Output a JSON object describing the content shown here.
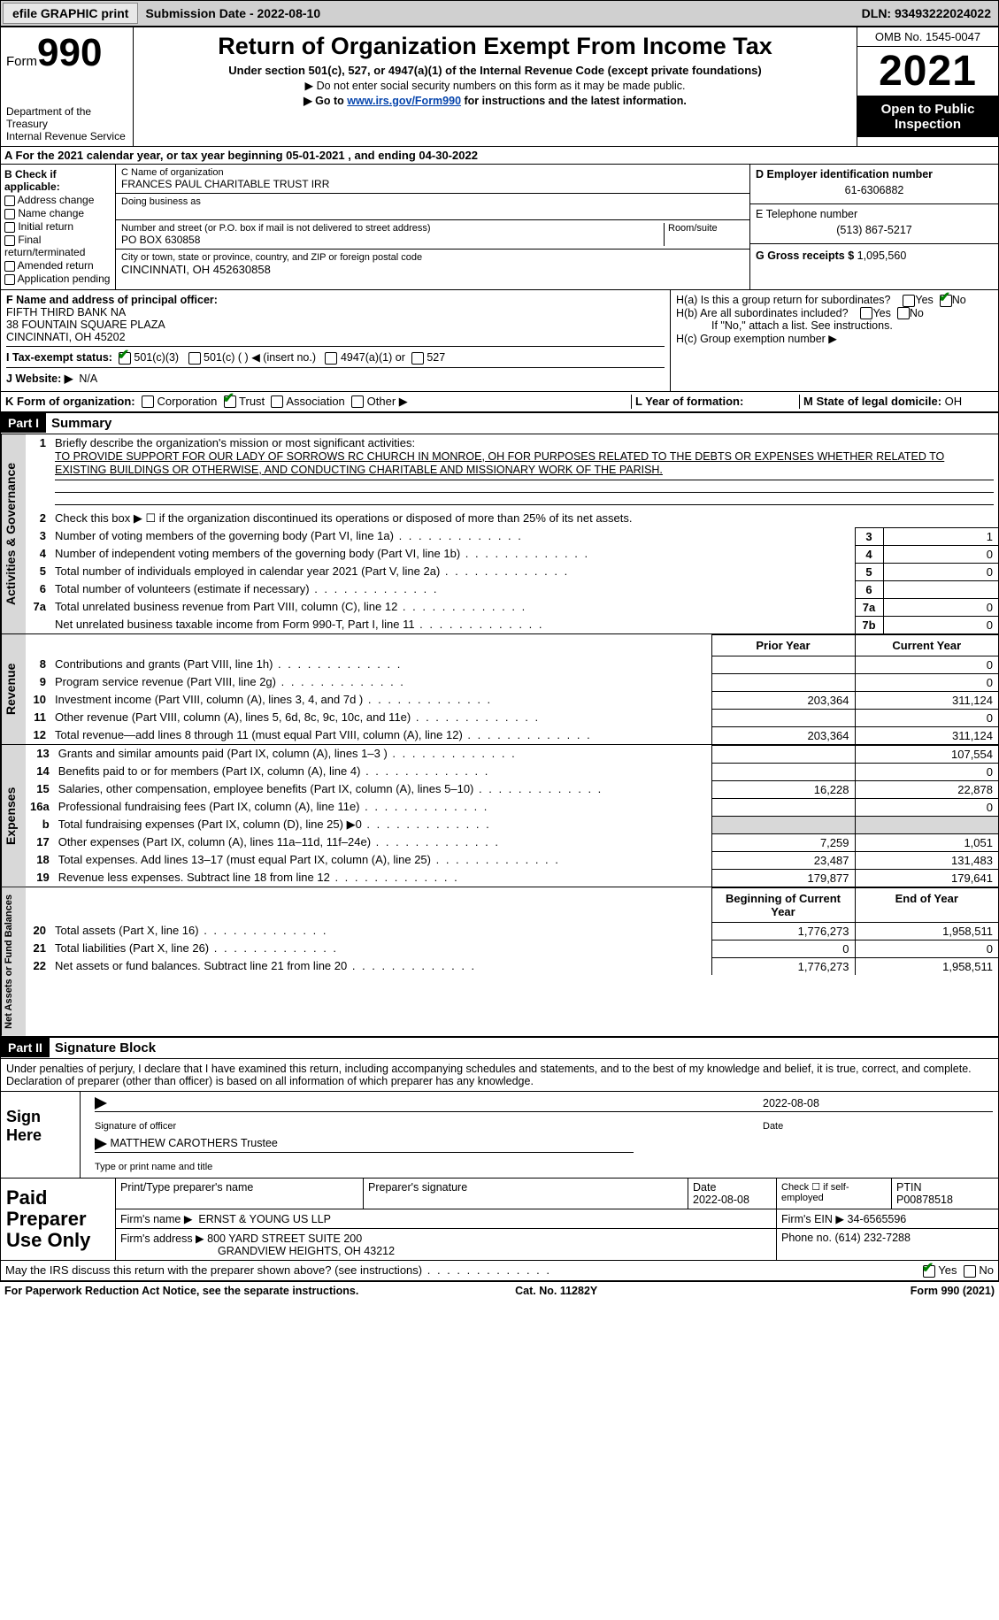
{
  "topbar": {
    "efile": "efile GRAPHIC print",
    "submission_label": "Submission Date - ",
    "submission_date": "2022-08-10",
    "dln_label": "DLN: ",
    "dln": "93493222024022"
  },
  "header": {
    "form_word": "Form",
    "form_no": "990",
    "dept1": "Department of the Treasury",
    "dept2": "Internal Revenue Service",
    "title": "Return of Organization Exempt From Income Tax",
    "sub": "Under section 501(c), 527, or 4947(a)(1) of the Internal Revenue Code (except private foundations)",
    "sub2a": "▶ Do not enter social security numbers on this form as it may be made public.",
    "sub2b_pre": "▶ Go to ",
    "sub2b_link": "www.irs.gov/Form990",
    "sub2b_post": " for instructions and the latest information.",
    "omb": "OMB No. 1545-0047",
    "year": "2021",
    "otp": "Open to Public Inspection"
  },
  "lineA": {
    "text_pre": "A For the 2021 calendar year, or tax year beginning ",
    "begin": "05-01-2021",
    "mid": "   , and ending ",
    "end": "04-30-2022"
  },
  "B": {
    "hdr": "B Check if applicable:",
    "opts": [
      "Address change",
      "Name change",
      "Initial return",
      "Final return/terminated",
      "Amended return",
      "Application pending"
    ]
  },
  "C": {
    "name_lab": "C Name of organization",
    "name": "FRANCES PAUL CHARITABLE TRUST IRR",
    "dba_lab": "Doing business as",
    "dba": "",
    "addr_lab": "Number and street (or P.O. box if mail is not delivered to street address)",
    "room_lab": "Room/suite",
    "addr": "PO BOX 630858",
    "city_lab": "City or town, state or province, country, and ZIP or foreign postal code",
    "city": "CINCINNATI, OH  452630858"
  },
  "D": {
    "lab": "D Employer identification number",
    "val": "61-6306882"
  },
  "E": {
    "lab": "E Telephone number",
    "val": "(513) 867-5217"
  },
  "G": {
    "lab": "G Gross receipts $",
    "val": "1,095,560"
  },
  "F": {
    "lab": "F  Name and address of principal officer:",
    "l1": "FIFTH THIRD BANK NA",
    "l2": "38 FOUNTAIN SQUARE PLAZA",
    "l3": "CINCINNATI, OH  45202"
  },
  "H": {
    "a": "H(a)  Is this a group return for subordinates?",
    "b": "H(b)  Are all subordinates included?",
    "bnote": "If \"No,\" attach a list. See instructions.",
    "c": "H(c)  Group exemption number ▶",
    "yes": "Yes",
    "no": "No"
  },
  "I": {
    "lab": "I   Tax-exempt status:",
    "o1": "501(c)(3)",
    "o2": "501(c) (  ) ◀ (insert no.)",
    "o3": "4947(a)(1) or",
    "o4": "527"
  },
  "J": {
    "lab": "J   Website: ▶",
    "val": "N/A"
  },
  "K": {
    "lab": "K Form of organization:",
    "o1": "Corporation",
    "o2": "Trust",
    "o3": "Association",
    "o4": "Other ▶"
  },
  "L": {
    "lab": "L Year of formation:",
    "val": ""
  },
  "M": {
    "lab": "M State of legal domicile: ",
    "val": "OH"
  },
  "part1": {
    "bar": "Part I",
    "title": "Summary"
  },
  "summary": {
    "l1_lab": "Briefly describe the organization's mission or most significant activities:",
    "l1_val": "TO PROVIDE SUPPORT FOR OUR LADY OF SORROWS RC CHURCH IN MONROE, OH FOR PURPOSES RELATED TO THE DEBTS OR EXPENSES WHETHER RELATED TO EXISTING BUILDINGS OR OTHERWISE, AND CONDUCTING CHARITABLE AND MISSIONARY WORK OF THE PARISH.",
    "l2": "Check this box ▶ ☐  if the organization discontinued its operations or disposed of more than 25% of its net assets.",
    "rows_top": [
      {
        "n": "3",
        "d": "Number of voting members of the governing body (Part VI, line 1a)",
        "b": "3",
        "v": "1"
      },
      {
        "n": "4",
        "d": "Number of independent voting members of the governing body (Part VI, line 1b)",
        "b": "4",
        "v": "0"
      },
      {
        "n": "5",
        "d": "Total number of individuals employed in calendar year 2021 (Part V, line 2a)",
        "b": "5",
        "v": "0"
      },
      {
        "n": "6",
        "d": "Total number of volunteers (estimate if necessary)",
        "b": "6",
        "v": ""
      },
      {
        "n": "7a",
        "d": "Total unrelated business revenue from Part VIII, column (C), line 12",
        "b": "7a",
        "v": "0"
      },
      {
        "n": "",
        "d": "Net unrelated business taxable income from Form 990-T, Part I, line 11",
        "b": "7b",
        "v": "0"
      }
    ],
    "prior": "Prior Year",
    "current": "Current Year",
    "rows_rev": [
      {
        "n": "8",
        "d": "Contributions and grants (Part VIII, line 1h)",
        "p": "",
        "c": "0"
      },
      {
        "n": "9",
        "d": "Program service revenue (Part VIII, line 2g)",
        "p": "",
        "c": "0"
      },
      {
        "n": "10",
        "d": "Investment income (Part VIII, column (A), lines 3, 4, and 7d )",
        "p": "203,364",
        "c": "311,124"
      },
      {
        "n": "11",
        "d": "Other revenue (Part VIII, column (A), lines 5, 6d, 8c, 9c, 10c, and 11e)",
        "p": "",
        "c": "0"
      },
      {
        "n": "12",
        "d": "Total revenue—add lines 8 through 11 (must equal Part VIII, column (A), line 12)",
        "p": "203,364",
        "c": "311,124"
      }
    ],
    "rows_exp": [
      {
        "n": "13",
        "d": "Grants and similar amounts paid (Part IX, column (A), lines 1–3 )",
        "p": "",
        "c": "107,554"
      },
      {
        "n": "14",
        "d": "Benefits paid to or for members (Part IX, column (A), line 4)",
        "p": "",
        "c": "0"
      },
      {
        "n": "15",
        "d": "Salaries, other compensation, employee benefits (Part IX, column (A), lines 5–10)",
        "p": "16,228",
        "c": "22,878"
      },
      {
        "n": "16a",
        "d": "Professional fundraising fees (Part IX, column (A), line 11e)",
        "p": "",
        "c": "0"
      },
      {
        "n": "b",
        "d": "Total fundraising expenses (Part IX, column (D), line 25) ▶0",
        "p": "GRAY",
        "c": "GRAY"
      },
      {
        "n": "17",
        "d": "Other expenses (Part IX, column (A), lines 11a–11d, 11f–24e)",
        "p": "7,259",
        "c": "1,051"
      },
      {
        "n": "18",
        "d": "Total expenses. Add lines 13–17 (must equal Part IX, column (A), line 25)",
        "p": "23,487",
        "c": "131,483"
      },
      {
        "n": "19",
        "d": "Revenue less expenses. Subtract line 18 from line 12",
        "p": "179,877",
        "c": "179,641"
      }
    ],
    "begin": "Beginning of Current Year",
    "endy": "End of Year",
    "rows_net": [
      {
        "n": "20",
        "d": "Total assets (Part X, line 16)",
        "p": "1,776,273",
        "c": "1,958,511"
      },
      {
        "n": "21",
        "d": "Total liabilities (Part X, line 26)",
        "p": "0",
        "c": "0"
      },
      {
        "n": "22",
        "d": "Net assets or fund balances. Subtract line 21 from line 20",
        "p": "1,776,273",
        "c": "1,958,511"
      }
    ],
    "tab_ag": "Activities & Governance",
    "tab_rev": "Revenue",
    "tab_exp": "Expenses",
    "tab_net": "Net Assets or Fund Balances"
  },
  "part2": {
    "bar": "Part II",
    "title": "Signature Block"
  },
  "sig": {
    "decl": "Under penalties of perjury, I declare that I have examined this return, including accompanying schedules and statements, and to the best of my knowledge and belief, it is true, correct, and complete. Declaration of preparer (other than officer) is based on all information of which preparer has any knowledge.",
    "here": "Sign Here",
    "sigoff": "Signature of officer",
    "date": "Date",
    "dateval": "2022-08-08",
    "name": "MATTHEW CAROTHERS  Trustee",
    "name_lab": "Type or print name and title"
  },
  "ppu": {
    "lab": "Paid Preparer Use Only",
    "h_name": "Print/Type preparer's name",
    "h_sig": "Preparer's signature",
    "h_date": "Date",
    "h_dateval": "2022-08-08",
    "h_self": "Check ☐ if self-employed",
    "h_ptin": "PTIN",
    "ptin": "P00878518",
    "firm_lab": "Firm's name      ▶",
    "firm": "ERNST & YOUNG US LLP",
    "ein_lab": "Firm's EIN ▶",
    "ein": "34-6565596",
    "addr_lab": "Firm's address ▶",
    "addr1": "800 YARD STREET SUITE 200",
    "addr2": "GRANDVIEW HEIGHTS, OH  43212",
    "phone_lab": "Phone no. ",
    "phone": "(614) 232-7288"
  },
  "discuss": {
    "q": "May the IRS discuss this return with the preparer shown above? (see instructions)",
    "yes": "Yes",
    "no": "No"
  },
  "footer": {
    "l": "For Paperwork Reduction Act Notice, see the separate instructions.",
    "c": "Cat. No. 11282Y",
    "r": "Form 990 (2021)"
  },
  "colors": {
    "bg_gray": "#d8d8d8",
    "link": "#0645ad"
  }
}
